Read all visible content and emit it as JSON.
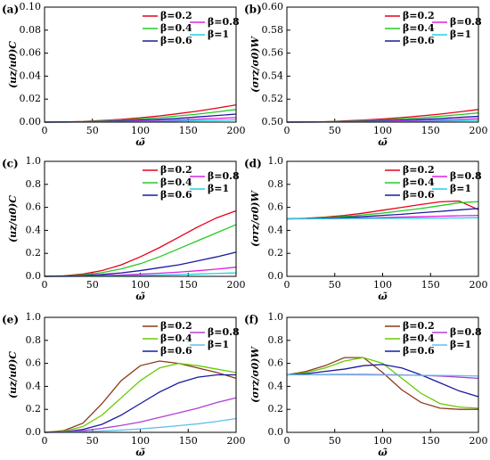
{
  "chart_data": [
    {
      "type": "line",
      "label": "(a)",
      "y_label": "(uz/u0)C",
      "x_label": "ω̃",
      "x": [
        0,
        20,
        40,
        60,
        80,
        100,
        120,
        140,
        160,
        180,
        200
      ],
      "xlim": [
        0,
        200
      ],
      "xticks": [
        0,
        50,
        100,
        150,
        200
      ],
      "ylim": [
        0,
        0.1
      ],
      "yticks": [
        {
          "value": 0,
          "label": "0.00"
        },
        {
          "value": 0.02,
          "label": "0.02"
        },
        {
          "value": 0.04,
          "label": "0.04"
        },
        {
          "value": 0.06,
          "label": "0.06"
        },
        {
          "value": 0.08,
          "label": "0.08"
        },
        {
          "value": 0.1,
          "label": "0.10"
        }
      ],
      "series": [
        {
          "name": "β=0.2",
          "color": "#e8001c",
          "values": [
            0,
            0.0002,
            0.0006,
            0.0014,
            0.0024,
            0.0038,
            0.0054,
            0.0074,
            0.0096,
            0.0122,
            0.015
          ]
        },
        {
          "name": "β=0.4",
          "color": "#22cc22",
          "values": [
            0,
            0.0001,
            0.0004,
            0.001,
            0.0018,
            0.0028,
            0.004,
            0.0054,
            0.007,
            0.0089,
            0.011
          ]
        },
        {
          "name": "β=0.6",
          "color": "#1a1aa0",
          "values": [
            0,
            0.0001,
            0.0003,
            0.0006,
            0.0011,
            0.0018,
            0.0025,
            0.0034,
            0.0045,
            0.0057,
            0.007
          ]
        },
        {
          "name": "β=0.8",
          "color": "#e020e0",
          "values": [
            0,
            0,
            0.0002,
            0.0004,
            0.0006,
            0.001,
            0.0014,
            0.002,
            0.0026,
            0.0032,
            0.004
          ]
        },
        {
          "name": "β=1",
          "color": "#20d0e0",
          "values": [
            0,
            0,
            0.0001,
            0.0002,
            0.0003,
            0.0005,
            0.0007,
            0.001,
            0.0013,
            0.0016,
            0.002
          ]
        }
      ]
    },
    {
      "type": "line",
      "label": "(b)",
      "y_label": "(σrz/σ0)W",
      "x_label": "ω̃",
      "x": [
        0,
        20,
        40,
        60,
        80,
        100,
        120,
        140,
        160,
        180,
        200
      ],
      "xlim": [
        0,
        200
      ],
      "xticks": [
        0,
        50,
        100,
        150,
        200
      ],
      "ylim": [
        0.5,
        0.6
      ],
      "yticks": [
        {
          "value": 0.5,
          "label": "0.50"
        },
        {
          "value": 0.52,
          "label": "0.52"
        },
        {
          "value": 0.54,
          "label": "0.54"
        },
        {
          "value": 0.56,
          "label": "0.56"
        },
        {
          "value": 0.58,
          "label": "0.58"
        },
        {
          "value": 0.6,
          "label": "0.60"
        }
      ],
      "series": [
        {
          "name": "β=0.2",
          "color": "#e8001c",
          "values": [
            0.5,
            0.5001,
            0.5004,
            0.501,
            0.5018,
            0.5028,
            0.504,
            0.5054,
            0.507,
            0.5089,
            0.511
          ]
        },
        {
          "name": "β=0.4",
          "color": "#22cc22",
          "values": [
            0.5,
            0.5001,
            0.5003,
            0.5007,
            0.5013,
            0.502,
            0.5029,
            0.5039,
            0.5051,
            0.5065,
            0.508
          ]
        },
        {
          "name": "β=0.6",
          "color": "#1a1aa0",
          "values": [
            0.5,
            0.5001,
            0.5002,
            0.5005,
            0.5008,
            0.5013,
            0.5018,
            0.5025,
            0.5032,
            0.5041,
            0.505
          ]
        },
        {
          "name": "β=0.8",
          "color": "#e020e0",
          "values": [
            0.5,
            0.5,
            0.5001,
            0.5003,
            0.5005,
            0.5008,
            0.5011,
            0.5015,
            0.5019,
            0.5024,
            0.503
          ]
        },
        {
          "name": "β=1",
          "color": "#20d0e0",
          "values": [
            0.5,
            0.5,
            0.5001,
            0.5001,
            0.5002,
            0.5004,
            0.5005,
            0.5007,
            0.501,
            0.5012,
            0.5015
          ]
        }
      ]
    },
    {
      "type": "line",
      "label": "(c)",
      "y_label": "(uz/u0)C",
      "x_label": "ω̃",
      "x": [
        0,
        20,
        40,
        60,
        80,
        100,
        120,
        140,
        160,
        180,
        200
      ],
      "xlim": [
        0,
        200
      ],
      "xticks": [
        0,
        50,
        100,
        150,
        200
      ],
      "ylim": [
        0,
        1
      ],
      "yticks": [
        {
          "value": 0,
          "label": "0.0"
        },
        {
          "value": 0.2,
          "label": "0.2"
        },
        {
          "value": 0.4,
          "label": "0.4"
        },
        {
          "value": 0.6,
          "label": "0.6"
        },
        {
          "value": 0.8,
          "label": "0.8"
        },
        {
          "value": 1,
          "label": "1.0"
        }
      ],
      "series": [
        {
          "name": "β=0.2",
          "color": "#e8001c",
          "values": [
            0,
            0.005,
            0.02,
            0.05,
            0.1,
            0.17,
            0.25,
            0.34,
            0.43,
            0.51,
            0.57
          ]
        },
        {
          "name": "β=0.4",
          "color": "#22cc22",
          "values": [
            0,
            0.003,
            0.013,
            0.032,
            0.065,
            0.11,
            0.17,
            0.24,
            0.31,
            0.38,
            0.45
          ]
        },
        {
          "name": "β=0.6",
          "color": "#1a1aa0",
          "values": [
            0,
            0.002,
            0.007,
            0.016,
            0.03,
            0.05,
            0.075,
            0.1,
            0.135,
            0.17,
            0.21
          ]
        },
        {
          "name": "β=0.8",
          "color": "#e020e0",
          "values": [
            0,
            0.001,
            0.003,
            0.007,
            0.012,
            0.019,
            0.027,
            0.037,
            0.049,
            0.063,
            0.08
          ]
        },
        {
          "name": "β=1",
          "color": "#20d0e0",
          "values": [
            0,
            0,
            0.001,
            0.003,
            0.005,
            0.008,
            0.011,
            0.015,
            0.02,
            0.025,
            0.03
          ]
        }
      ]
    },
    {
      "type": "line",
      "label": "(d)",
      "y_label": "(σrz/σ0)W",
      "x_label": "ω̃",
      "x": [
        0,
        20,
        40,
        60,
        80,
        100,
        120,
        140,
        160,
        180,
        200
      ],
      "xlim": [
        0,
        200
      ],
      "xticks": [
        0,
        50,
        100,
        150,
        200
      ],
      "ylim": [
        0,
        1
      ],
      "yticks": [
        {
          "value": 0,
          "label": "0.0"
        },
        {
          "value": 0.2,
          "label": "0.2"
        },
        {
          "value": 0.4,
          "label": "0.4"
        },
        {
          "value": 0.6,
          "label": "0.6"
        },
        {
          "value": 0.8,
          "label": "0.8"
        },
        {
          "value": 1,
          "label": "1.0"
        }
      ],
      "series": [
        {
          "name": "β=0.2",
          "color": "#e8001c",
          "values": [
            0.5,
            0.505,
            0.515,
            0.53,
            0.55,
            0.575,
            0.6,
            0.625,
            0.648,
            0.655,
            0.58
          ]
        },
        {
          "name": "β=0.4",
          "color": "#22cc22",
          "values": [
            0.5,
            0.503,
            0.51,
            0.52,
            0.535,
            0.55,
            0.57,
            0.59,
            0.615,
            0.64,
            0.65
          ]
        },
        {
          "name": "β=0.6",
          "color": "#1a1aa0",
          "values": [
            0.5,
            0.502,
            0.506,
            0.512,
            0.52,
            0.53,
            0.54,
            0.553,
            0.565,
            0.578,
            0.59
          ]
        },
        {
          "name": "β=0.8",
          "color": "#e020e0",
          "values": [
            0.5,
            0.501,
            0.502,
            0.505,
            0.508,
            0.511,
            0.515,
            0.519,
            0.523,
            0.527,
            0.53
          ]
        },
        {
          "name": "β=1",
          "color": "#20d0e0",
          "values": [
            0.5,
            0.5,
            0.501,
            0.502,
            0.503,
            0.504,
            0.505,
            0.506,
            0.507,
            0.508,
            0.51
          ]
        }
      ]
    },
    {
      "type": "line",
      "label": "(e)",
      "y_label": "(uz/u0)C",
      "x_label": "ω̃",
      "x": [
        0,
        20,
        40,
        60,
        80,
        100,
        120,
        140,
        160,
        180,
        200
      ],
      "xlim": [
        0,
        200
      ],
      "xticks": [
        0,
        50,
        100,
        150,
        200
      ],
      "ylim": [
        0,
        1
      ],
      "yticks": [
        {
          "value": 0,
          "label": "0.0"
        },
        {
          "value": 0.2,
          "label": "0.2"
        },
        {
          "value": 0.4,
          "label": "0.4"
        },
        {
          "value": 0.6,
          "label": "0.6"
        },
        {
          "value": 0.8,
          "label": "0.8"
        },
        {
          "value": 1,
          "label": "1.0"
        }
      ],
      "series": [
        {
          "name": "β=0.2",
          "color": "#8b3a1a",
          "values": [
            0,
            0.015,
            0.08,
            0.25,
            0.45,
            0.58,
            0.62,
            0.6,
            0.56,
            0.52,
            0.47
          ]
        },
        {
          "name": "β=0.4",
          "color": "#66cc00",
          "values": [
            0,
            0.01,
            0.05,
            0.15,
            0.3,
            0.45,
            0.56,
            0.6,
            0.58,
            0.55,
            0.52
          ]
        },
        {
          "name": "β=0.6",
          "color": "#1a1aa0",
          "values": [
            0,
            0.005,
            0.025,
            0.07,
            0.15,
            0.25,
            0.35,
            0.43,
            0.48,
            0.5,
            0.5
          ]
        },
        {
          "name": "β=0.8",
          "color": "#b040d0",
          "values": [
            0,
            0.005,
            0.015,
            0.035,
            0.06,
            0.09,
            0.13,
            0.17,
            0.21,
            0.26,
            0.3
          ]
        },
        {
          "name": "β=1",
          "color": "#60c0e8",
          "values": [
            0,
            0.002,
            0.006,
            0.012,
            0.02,
            0.03,
            0.043,
            0.058,
            0.074,
            0.095,
            0.12
          ]
        }
      ]
    },
    {
      "type": "line",
      "label": "(f)",
      "y_label": "(σrz/σ0)W",
      "x_label": "ω̃",
      "x": [
        0,
        20,
        40,
        60,
        80,
        100,
        120,
        140,
        160,
        180,
        200
      ],
      "xlim": [
        0,
        200
      ],
      "xticks": [
        0,
        50,
        100,
        150,
        200
      ],
      "ylim": [
        0,
        1
      ],
      "yticks": [
        {
          "value": 0,
          "label": "0.0"
        },
        {
          "value": 0.2,
          "label": "0.2"
        },
        {
          "value": 0.4,
          "label": "0.4"
        },
        {
          "value": 0.6,
          "label": "0.6"
        },
        {
          "value": 0.8,
          "label": "0.8"
        },
        {
          "value": 1,
          "label": "1.0"
        }
      ],
      "series": [
        {
          "name": "β=0.2",
          "color": "#8b3a1a",
          "values": [
            0.5,
            0.53,
            0.58,
            0.65,
            0.65,
            0.52,
            0.37,
            0.26,
            0.21,
            0.2,
            0.2
          ]
        },
        {
          "name": "β=0.4",
          "color": "#66cc00",
          "values": [
            0.5,
            0.52,
            0.56,
            0.62,
            0.65,
            0.6,
            0.47,
            0.34,
            0.25,
            0.22,
            0.21
          ]
        },
        {
          "name": "β=0.6",
          "color": "#1a1aa0",
          "values": [
            0.5,
            0.51,
            0.53,
            0.55,
            0.58,
            0.59,
            0.56,
            0.5,
            0.43,
            0.36,
            0.31
          ]
        },
        {
          "name": "β=0.8",
          "color": "#b040d0",
          "values": [
            0.5,
            0.502,
            0.503,
            0.504,
            0.504,
            0.502,
            0.5,
            0.495,
            0.49,
            0.48,
            0.47
          ]
        },
        {
          "name": "β=1",
          "color": "#60c0e8",
          "values": [
            0.5,
            0.5,
            0.5,
            0.5,
            0.499,
            0.498,
            0.497,
            0.496,
            0.495,
            0.493,
            0.49
          ]
        }
      ]
    }
  ]
}
